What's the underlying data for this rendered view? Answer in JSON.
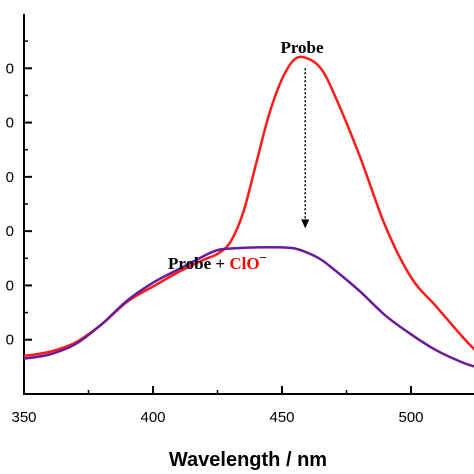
{
  "chart_data": {
    "type": "line",
    "title": "",
    "xlabel": "Wavelength / nm",
    "ylabel": "",
    "xlim": [
      350,
      525
    ],
    "ylim": [
      0,
      700
    ],
    "x_ticks": [
      350,
      400,
      450,
      500
    ],
    "x_tick_labels": [
      "350",
      "400",
      "450",
      "500"
    ],
    "y_ticks": [
      100,
      200,
      300,
      400,
      500,
      600
    ],
    "y_tick_labels": [
      "0",
      "0",
      "0",
      "0",
      "0",
      "0"
    ],
    "grid": false,
    "annotations": [
      {
        "text": "Probe",
        "color": "#000000"
      },
      {
        "text_parts": [
          {
            "text": "Probe + ",
            "color": "#000000"
          },
          {
            "text": "ClO",
            "color": "#ff0000"
          },
          {
            "text": "−",
            "color": "#000000",
            "superscript": true
          }
        ]
      }
    ],
    "arrow": {
      "from": [
        459,
        600
      ],
      "to": [
        459,
        305
      ],
      "style": "dotted"
    },
    "series": [
      {
        "color": "#ff1a1a",
        "x": [
          350,
          360,
          370,
          380,
          390,
          400,
          410,
          420,
          425,
          430,
          435,
          440,
          445,
          450,
          455,
          460,
          465,
          470,
          480,
          490,
          500,
          510,
          520,
          525
        ],
        "y": [
          70,
          78,
          95,
          128,
          170,
          198,
          225,
          248,
          258,
          280,
          335,
          425,
          515,
          580,
          617,
          618,
          600,
          555,
          440,
          310,
          215,
          160,
          105,
          80
        ]
      },
      {
        "color": "#6a1b9a",
        "x": [
          350,
          360,
          370,
          380,
          390,
          400,
          410,
          420,
          425,
          430,
          440,
          450,
          455,
          460,
          465,
          470,
          480,
          490,
          500,
          510,
          520,
          525
        ],
        "y": [
          65,
          73,
          92,
          128,
          172,
          205,
          230,
          255,
          265,
          268,
          270,
          270,
          268,
          260,
          248,
          230,
          190,
          145,
          110,
          80,
          58,
          50
        ]
      }
    ]
  }
}
